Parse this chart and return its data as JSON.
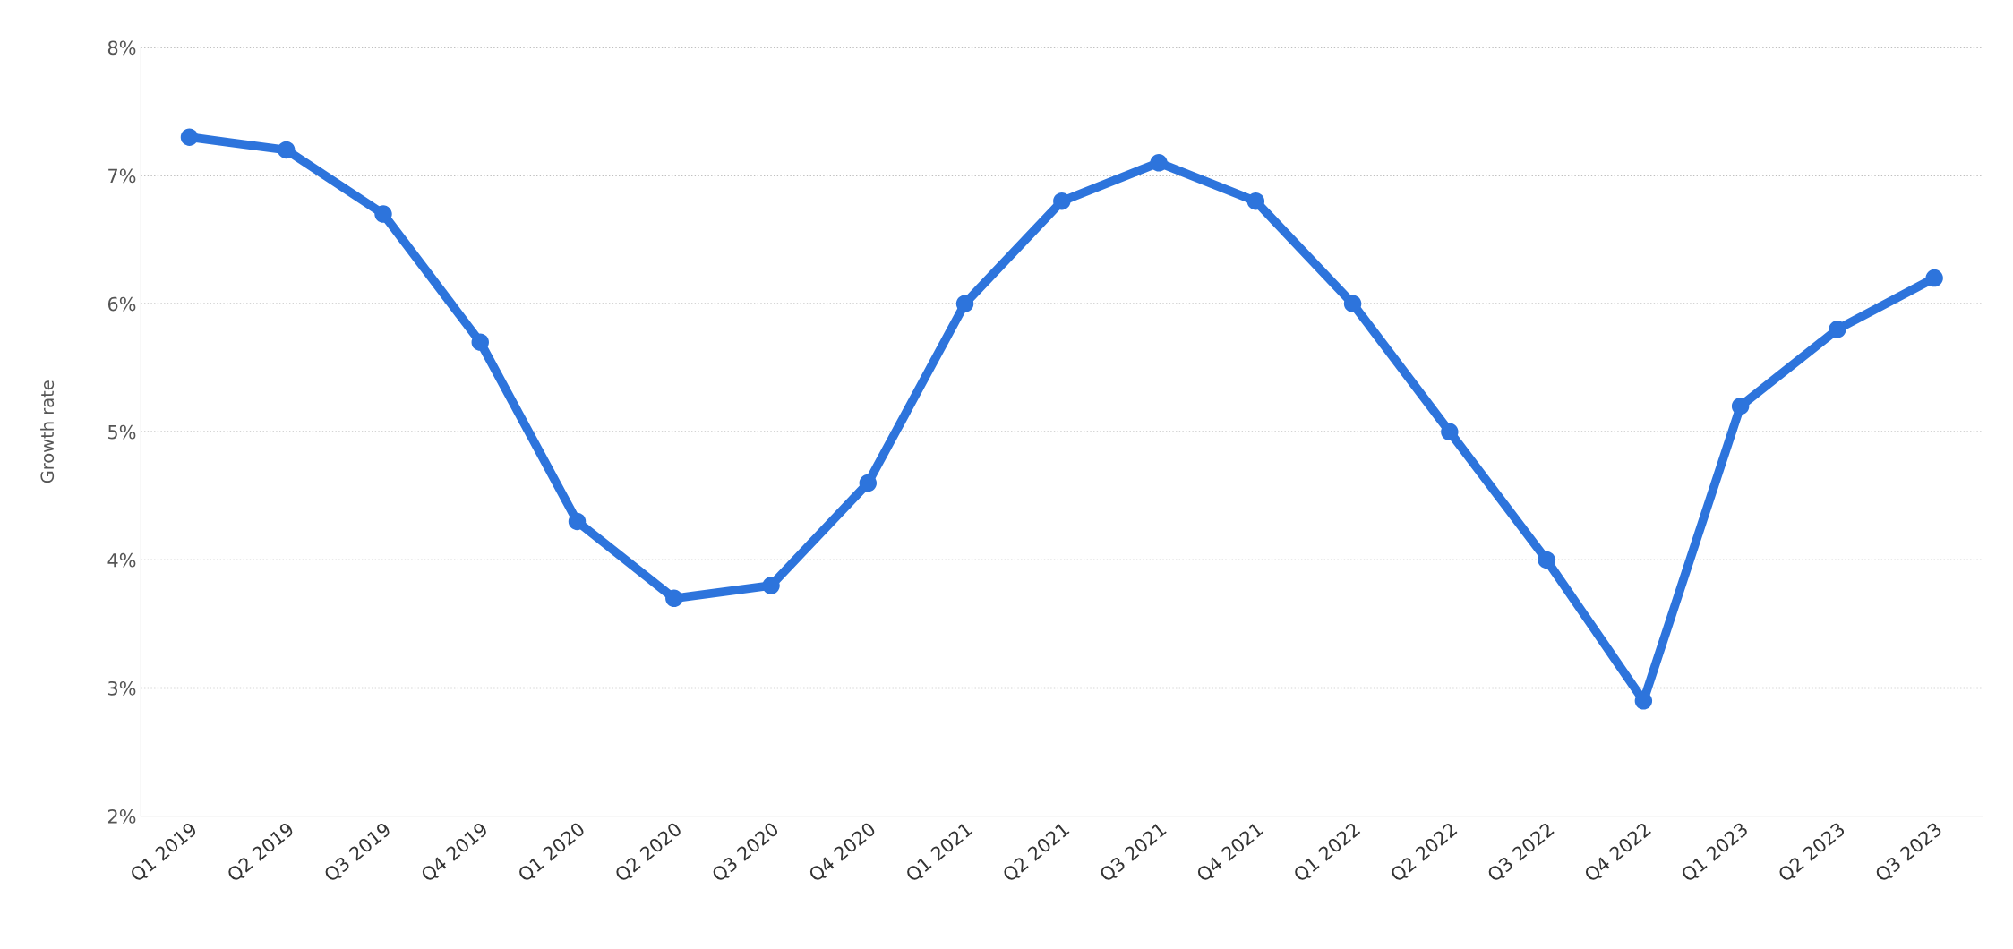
{
  "chart_data": {
    "type": "line",
    "ylabel": "Growth rate",
    "categories": [
      "Q1 2019",
      "Q2 2019",
      "Q3 2019",
      "Q4 2019",
      "Q1 2020",
      "Q2 2020",
      "Q3 2020",
      "Q4 2020",
      "Q1 2021",
      "Q2 2021",
      "Q3 2021",
      "Q4 2021",
      "Q1 2022",
      "Q2 2022",
      "Q3 2022",
      "Q4 2022",
      "Q1 2023",
      "Q2 2023",
      "Q3 2023"
    ],
    "series": [
      {
        "color": "#2d74dc",
        "values": [
          7.3,
          7.2,
          6.7,
          5.7,
          4.3,
          3.7,
          3.8,
          4.6,
          6.0,
          6.8,
          7.1,
          6.8,
          6.0,
          5.0,
          4.0,
          2.9,
          5.2,
          5.8,
          6.2
        ]
      }
    ],
    "ylim": [
      2,
      8
    ],
    "yticks": [
      {
        "value": 2,
        "label": "2%"
      },
      {
        "value": 3,
        "label": "3%"
      },
      {
        "value": 4,
        "label": "4%"
      },
      {
        "value": 5,
        "label": "5%"
      },
      {
        "value": 6,
        "label": "6%"
      },
      {
        "value": 7,
        "label": "7%"
      },
      {
        "value": 8,
        "label": "8%"
      }
    ],
    "grid": "y",
    "marker": "circle",
    "line_style": "solid",
    "legend": false
  }
}
